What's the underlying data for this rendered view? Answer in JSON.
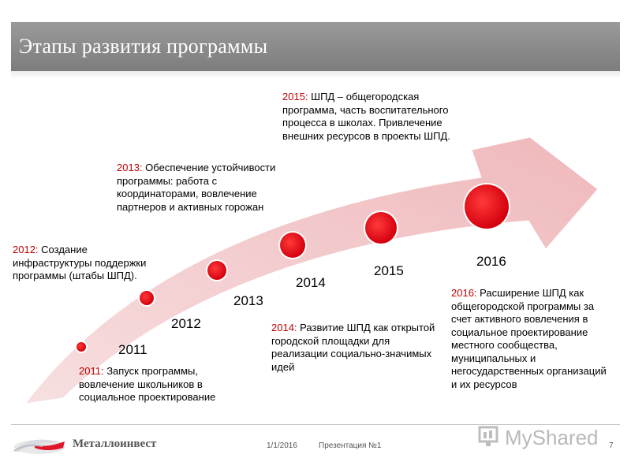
{
  "slide": {
    "title": "Этапы развития программы",
    "footer_date": "1/1/2016",
    "footer_presentation": "Презентация №1",
    "page_number": "7",
    "company": "Металлоинвест",
    "watermark": "MyShared"
  },
  "colors": {
    "arrow_fill": "#f2c6c8",
    "dot_fill": "#e8101c",
    "dot_ring": "#ffffff",
    "accent_year": "#c00000"
  },
  "milestones": [
    {
      "year": "2011",
      "label_year": "2011:",
      "text": "Запуск программы, вовлечение школьников в социальное проектирование"
    },
    {
      "year": "2012",
      "label_year": "2012:",
      "text": "Создание инфраструктуры поддержки программы (штабы ШПД)."
    },
    {
      "year": "2013",
      "label_year": "2013:",
      "text": "Обеспечение устойчивости программы: работа с координаторами, вовлечение партнеров и активных горожан"
    },
    {
      "year": "2014",
      "label_year": "2014:",
      "text": "Развитие ШПД как открытой городской площадки для реализации социально-значимых идей"
    },
    {
      "year": "2015",
      "label_year": "2015:",
      "text": "ШПД – общегородская программа, часть воспитательного процесса в школах. Привлечение внешних ресурсов в проекты ШПД."
    },
    {
      "year": "2016",
      "label_year": "2016:",
      "text": "Расширение ШПД как общегородской программы за счет активного вовлечения в социальное проектирование местного сообщества, муниципальных и негосударственных организаций и их ресурсов"
    }
  ]
}
